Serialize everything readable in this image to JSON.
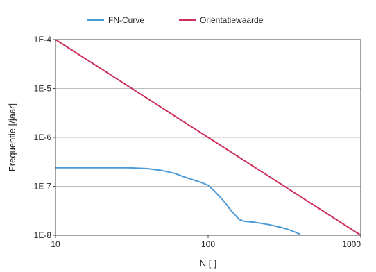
{
  "chart_data": {
    "type": "line",
    "title": "",
    "xlabel": "N [-]",
    "ylabel": "Frequentie [/jaar]",
    "xscale": "log",
    "yscale": "log",
    "xlim": [
      10,
      1000
    ],
    "ylim": [
      1e-08,
      0.0001
    ],
    "x_tick_labels": [
      "10",
      "100",
      "1000"
    ],
    "y_tick_labels": [
      "1E-4",
      "1E-5",
      "1E-6",
      "1E-7",
      "1E-8"
    ],
    "grid": "horizontal",
    "legend_position": "top",
    "series": [
      {
        "name": "FN-Curve",
        "color": "#4a9ad8",
        "x": [
          10,
          20,
          30,
          40,
          50,
          60,
          70,
          80,
          90,
          100,
          110,
          120,
          130,
          140,
          150,
          160,
          170,
          180,
          200,
          250,
          300,
          350,
          400
        ],
        "y": [
          2.4e-07,
          2.4e-07,
          2.4e-07,
          2.3e-07,
          2.1e-07,
          1.85e-07,
          1.55e-07,
          1.35e-07,
          1.2e-07,
          1.05e-07,
          8e-08,
          6e-08,
          4.5e-08,
          3.3e-08,
          2.6e-08,
          2.1e-08,
          1.95e-08,
          1.9e-08,
          1.85e-08,
          1.65e-08,
          1.45e-08,
          1.25e-08,
          1.05e-08
        ]
      },
      {
        "name": "Oriëntatiewaarde",
        "color": "#cc2f5a",
        "x": [
          10,
          1000
        ],
        "y": [
          0.0001,
          1e-08
        ]
      }
    ]
  }
}
